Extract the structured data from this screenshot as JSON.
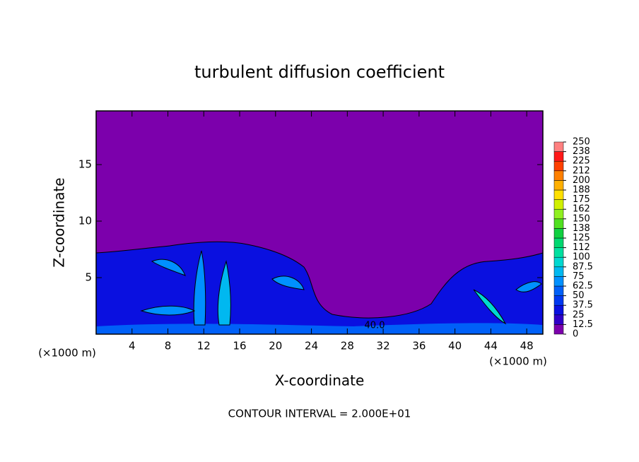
{
  "chart_data": {
    "type": "contour",
    "title": "turbulent diffusion coefficient",
    "x_label": "X-coordinate",
    "y_label": "Z-coordinate",
    "x_unit_label": "(×1000 m)",
    "y_unit_label": "(×1000 m)",
    "footer": "CONTOUR INTERVAL = 2.000E+01",
    "contour_label": "40.0",
    "xlim": [
      0,
      49.8
    ],
    "ylim": [
      0,
      19.75
    ],
    "xticks": [
      4,
      8,
      12,
      16,
      20,
      24,
      28,
      32,
      36,
      40,
      44,
      48
    ],
    "yticks": [
      5,
      10,
      15
    ],
    "colorbar": {
      "ticks": [
        0,
        12.5,
        25,
        37.5,
        50,
        62.5,
        75,
        87.5,
        100,
        112,
        125,
        138,
        150,
        162,
        175,
        188,
        200,
        212,
        225,
        238,
        250
      ],
      "colors": [
        "#7c00ac",
        "#3000c8",
        "#0a10e0",
        "#0038f0",
        "#0060f8",
        "#0090ff",
        "#00b8f0",
        "#00d8d0",
        "#00e0a0",
        "#00d870",
        "#10d040",
        "#50e020",
        "#90f020",
        "#d0f000",
        "#ffe000",
        "#ffb000",
        "#ff8000",
        "#ff4000",
        "#ff1818",
        "#ff8080"
      ]
    }
  }
}
